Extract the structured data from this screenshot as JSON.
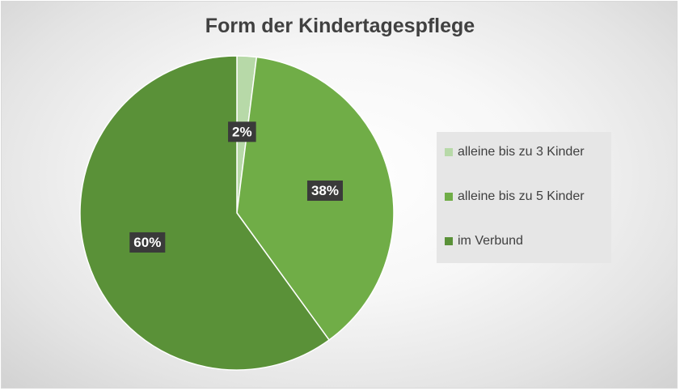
{
  "chart_data": {
    "type": "pie",
    "title": "Form der Kindertagespflege",
    "categories": [
      "alleine bis zu 3 Kinder",
      "alleine bis zu 5 Kinder",
      "im Verbund"
    ],
    "values": [
      2,
      38,
      60
    ],
    "value_labels": [
      "2%",
      "38%",
      "60%"
    ],
    "colors": [
      "#b7d9a8",
      "#70ad47",
      "#5a9138"
    ],
    "legend_position": "right"
  }
}
